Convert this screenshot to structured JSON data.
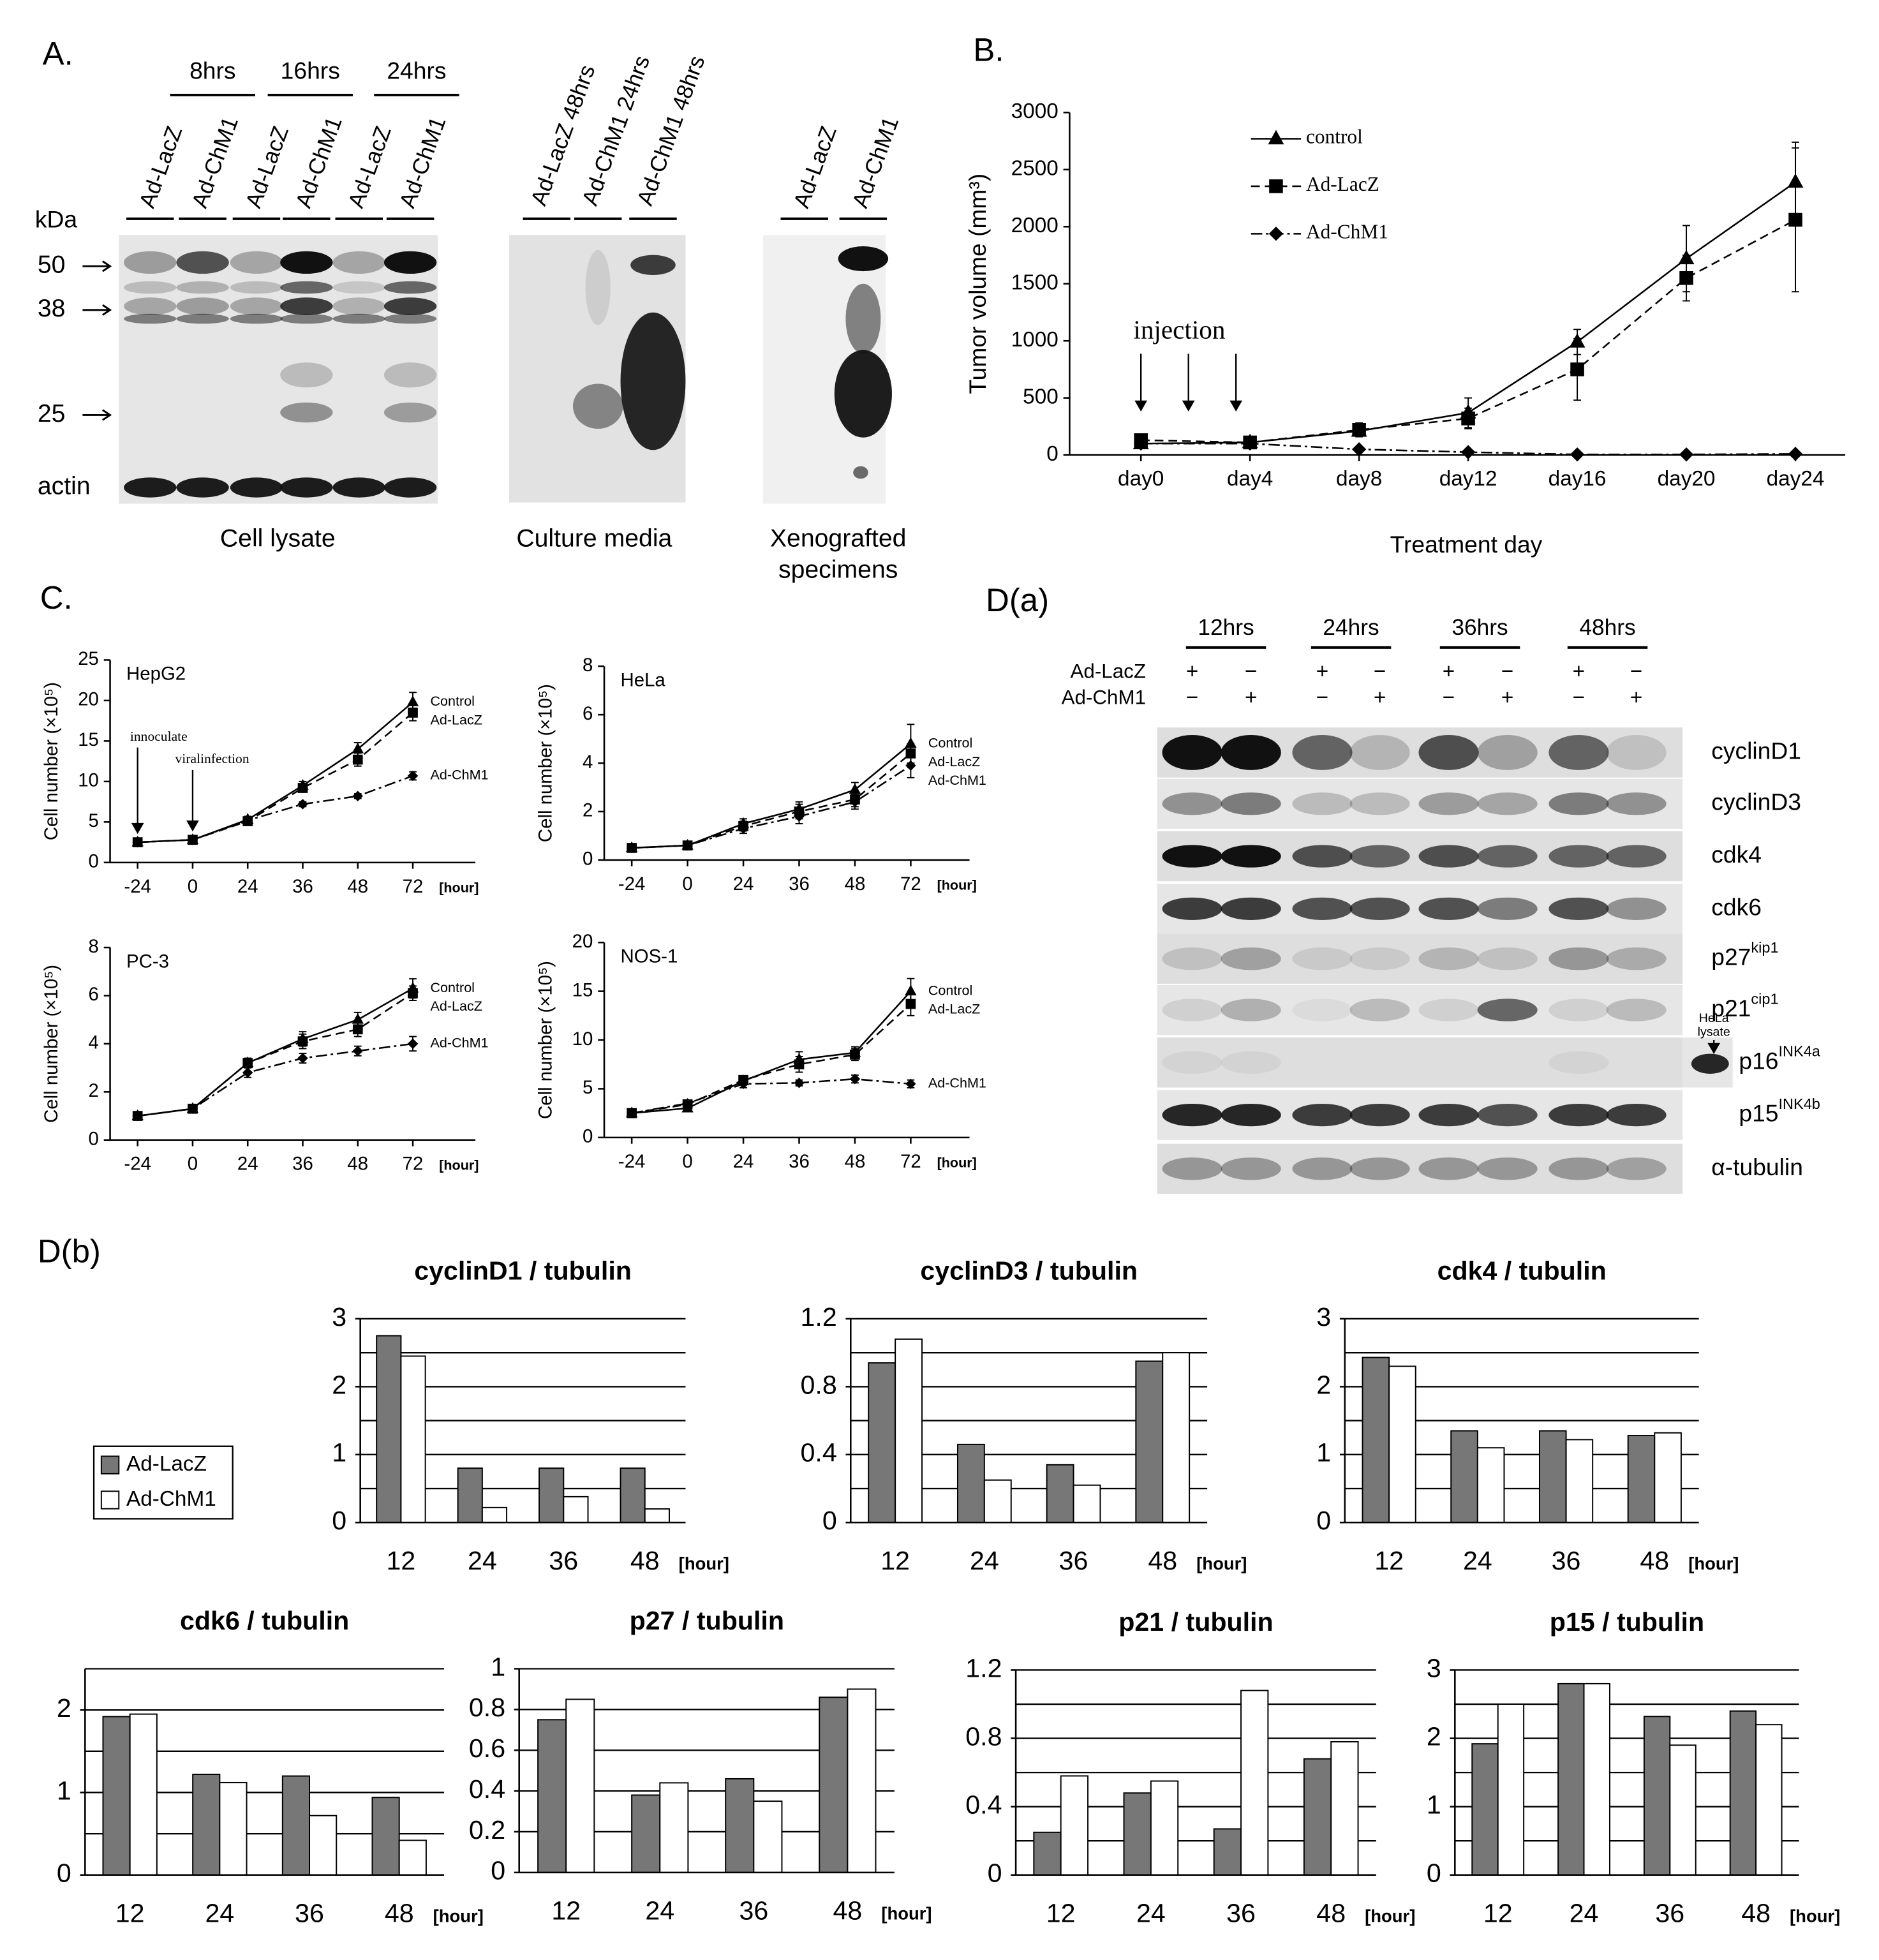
{
  "panels": {
    "a": "A.",
    "b": "B.",
    "c": "C.",
    "da": "D(a)",
    "db": "D(b)"
  },
  "blot_a": {
    "times": [
      "8hrs",
      "16hrs",
      "24hrs"
    ],
    "lanes": [
      "Ad-LacZ",
      "Ad-ChM1",
      "Ad-LacZ",
      "Ad-ChM1",
      "Ad-LacZ",
      "Ad-ChM1"
    ],
    "unit": "kDa",
    "markers": [
      "50",
      "38",
      "25"
    ],
    "loading": "actin",
    "caption": "Cell lysate",
    "media_lanes": [
      "Ad-LacZ 48hrs",
      "Ad-ChM1 24hrs",
      "Ad-ChM1 48hrs"
    ],
    "media_caption": "Culture media",
    "xeno_lanes": [
      "Ad-LacZ",
      "Ad-ChM1"
    ],
    "xeno_caption": [
      "Xenografted",
      "specimens"
    ]
  },
  "blot_d": {
    "times": [
      "12hrs",
      "24hrs",
      "36hrs",
      "48hrs"
    ],
    "rows": [
      "Ad-LacZ",
      "Ad-ChM1"
    ],
    "signs": [
      [
        "+",
        "−",
        "+",
        "−",
        "+",
        "−",
        "+",
        "−"
      ],
      [
        "−",
        "+",
        "−",
        "+",
        "−",
        "+",
        "−",
        "+"
      ]
    ],
    "proteins": [
      {
        "name": "cyclinD1"
      },
      {
        "name": "cyclinD3"
      },
      {
        "name": "cdk4"
      },
      {
        "name": "cdk6"
      },
      {
        "name": "p27",
        "sup": "kip1"
      },
      {
        "name": "p21",
        "sup": "cip1"
      },
      {
        "name": "p16",
        "sup": "INK4a"
      },
      {
        "name": "p15",
        "sup": "INK4b"
      },
      {
        "name": "α-tubulin"
      }
    ],
    "hela": [
      "HeLa",
      "lysate"
    ]
  },
  "chart_data": [
    {
      "type": "line",
      "ylabel": "Tumor volume (mm³)",
      "xlabel": "Treatment day",
      "categories": [
        "day0",
        "day4",
        "day8",
        "day12",
        "day16",
        "day20",
        "day24"
      ],
      "ylim": [
        0,
        3000
      ],
      "yticks": [
        0,
        500,
        1000,
        1500,
        2000,
        2500,
        3000
      ],
      "legend": "upper left",
      "annotations": [
        "injection"
      ],
      "series": [
        {
          "name": "control",
          "color": "#000000",
          "marker": "triangle",
          "dash": "solid",
          "values": [
            100,
            110,
            210,
            370,
            990,
            1720,
            2390
          ],
          "errors": [
            30,
            40,
            50,
            130,
            110,
            290,
            350
          ]
        },
        {
          "name": "Ad-LacZ",
          "color": "#000000",
          "marker": "square",
          "dash": "dashed",
          "values": [
            130,
            110,
            220,
            320,
            750,
            1550,
            2060
          ],
          "errors": [
            40,
            30,
            60,
            90,
            270,
            200,
            630
          ]
        },
        {
          "name": "Ad-ChM1",
          "color": "#000000",
          "marker": "diamond",
          "dash": "dashdot",
          "values": [
            100,
            100,
            50,
            25,
            5,
            5,
            10
          ]
        }
      ]
    },
    {
      "type": "line",
      "title": "HepG2",
      "ylabel": "Cell number (×10⁵)",
      "categories": [
        "-24",
        "0",
        "24",
        "36",
        "48",
        "72"
      ],
      "x_unit": "[hour]",
      "ylim": [
        0,
        25
      ],
      "yticks": [
        0,
        5,
        10,
        15,
        20,
        25
      ],
      "legend": "line end",
      "annotations": [
        "innoculate",
        "viralinfection"
      ],
      "series": [
        {
          "name": "Control",
          "color": "#000000",
          "marker": "triangle",
          "dash": "solid",
          "values": [
            2.5,
            2.8,
            5.3,
            9.5,
            14,
            19.8
          ],
          "errors": [
            0.3,
            0.3,
            0.4,
            0.5,
            0.8,
            1.2
          ]
        },
        {
          "name": "Ad-LacZ",
          "color": "#000000",
          "marker": "square",
          "dash": "dashed",
          "values": [
            2.5,
            2.8,
            5.1,
            9.2,
            12.7,
            18.5
          ],
          "errors": [
            0.3,
            0.3,
            0.4,
            0.5,
            0.8,
            1.0
          ]
        },
        {
          "name": "Ad-ChM1",
          "color": "#000000",
          "marker": "diamond",
          "dash": "dashdot",
          "values": [
            2.5,
            2.8,
            5.2,
            7.2,
            8.2,
            10.7
          ],
          "errors": [
            0.3,
            0.3,
            0.3,
            0.3,
            0.3,
            0.5
          ]
        }
      ]
    },
    {
      "type": "line",
      "title": "HeLa",
      "ylabel": "Cell number (×10⁵)",
      "categories": [
        "-24",
        "0",
        "24",
        "36",
        "48",
        "72"
      ],
      "x_unit": "[hour]",
      "ylim": [
        0,
        8
      ],
      "yticks": [
        0,
        2,
        4,
        6,
        8
      ],
      "legend": "line end",
      "series": [
        {
          "name": "Control",
          "color": "#000000",
          "marker": "triangle",
          "dash": "solid",
          "values": [
            0.5,
            0.6,
            1.5,
            2.1,
            2.9,
            4.8
          ],
          "errors": [
            0.05,
            0.05,
            0.2,
            0.3,
            0.3,
            0.8
          ]
        },
        {
          "name": "Ad-LacZ",
          "color": "#000000",
          "marker": "square",
          "dash": "dashed",
          "values": [
            0.5,
            0.6,
            1.4,
            2.0,
            2.5,
            4.4
          ],
          "errors": [
            0.05,
            0.05,
            0.2,
            0.3,
            0.3,
            0.4
          ]
        },
        {
          "name": "Ad-ChM1",
          "color": "#000000",
          "marker": "diamond",
          "dash": "dashdot",
          "values": [
            0.5,
            0.6,
            1.3,
            1.8,
            2.4,
            3.9
          ],
          "errors": [
            0.05,
            0.05,
            0.2,
            0.3,
            0.3,
            0.5
          ]
        }
      ]
    },
    {
      "type": "line",
      "title": "PC-3",
      "ylabel": "Cell number (×10⁵)",
      "categories": [
        "-24",
        "0",
        "24",
        "36",
        "48",
        "72"
      ],
      "x_unit": "[hour]",
      "ylim": [
        0,
        8
      ],
      "yticks": [
        0,
        2,
        4,
        6,
        8
      ],
      "legend": "line end",
      "series": [
        {
          "name": "Control",
          "color": "#000000",
          "marker": "triangle",
          "dash": "solid",
          "values": [
            1,
            1.3,
            3.2,
            4.2,
            5,
            6.3
          ],
          "errors": [
            0.05,
            0.05,
            0.2,
            0.3,
            0.3,
            0.4
          ]
        },
        {
          "name": "Ad-LacZ",
          "color": "#000000",
          "marker": "square",
          "dash": "dashed",
          "values": [
            1,
            1.3,
            3.2,
            4.1,
            4.6,
            6.1
          ],
          "errors": [
            0.05,
            0.05,
            0.2,
            0.3,
            0.3,
            0.3
          ]
        },
        {
          "name": "Ad-ChM1",
          "color": "#000000",
          "marker": "diamond",
          "dash": "dashdot",
          "values": [
            1,
            1.3,
            2.8,
            3.4,
            3.7,
            4
          ],
          "errors": [
            0.05,
            0.05,
            0.2,
            0.2,
            0.2,
            0.3
          ]
        }
      ]
    },
    {
      "type": "line",
      "title": "NOS-1",
      "ylabel": "Cell number (×10⁵)",
      "categories": [
        "-24",
        "0",
        "24",
        "36",
        "48",
        "72"
      ],
      "x_unit": "[hour]",
      "ylim": [
        0,
        20
      ],
      "yticks": [
        0,
        5,
        10,
        15,
        20
      ],
      "legend": "line end",
      "series": [
        {
          "name": "Control",
          "color": "#000000",
          "marker": "triangle",
          "dash": "solid",
          "values": [
            2.5,
            3,
            5.8,
            8,
            8.7,
            15
          ],
          "errors": [
            0.3,
            0.3,
            0.4,
            0.8,
            0.6,
            1.3
          ]
        },
        {
          "name": "Ad-LacZ",
          "color": "#000000",
          "marker": "square",
          "dash": "dashed",
          "values": [
            2.5,
            3.4,
            5.9,
            7.5,
            8.5,
            13.7
          ],
          "errors": [
            0.3,
            0.3,
            0.4,
            0.8,
            0.6,
            1.2
          ]
        },
        {
          "name": "Ad-ChM1",
          "color": "#000000",
          "marker": "diamond",
          "dash": "dashdot",
          "values": [
            2.5,
            3.5,
            5.5,
            5.6,
            6,
            5.5
          ],
          "errors": [
            0.3,
            0.3,
            0.4,
            0.3,
            0.4,
            0.4
          ]
        }
      ]
    },
    {
      "type": "bar",
      "title": "cyclinD1 / tubulin",
      "categories": [
        "12",
        "24",
        "36",
        "48"
      ],
      "x_unit": "[hour]",
      "ylim": [
        0,
        3
      ],
      "yticks": [
        0,
        1,
        2,
        3
      ],
      "grid": [
        0.5,
        1,
        1.5,
        2,
        2.5,
        3
      ],
      "legend": "left",
      "series": [
        {
          "name": "Ad-LacZ",
          "color": "#777777",
          "values": [
            2.75,
            0.8,
            0.8,
            0.8
          ]
        },
        {
          "name": "Ad-ChM1",
          "color": "#ffffff",
          "values": [
            2.45,
            0.22,
            0.38,
            0.2
          ]
        }
      ]
    },
    {
      "type": "bar",
      "title": "cyclinD3 / tubulin",
      "categories": [
        "12",
        "24",
        "36",
        "48"
      ],
      "x_unit": "[hour]",
      "ylim": [
        0,
        1.2
      ],
      "yticks": [
        0,
        0.4,
        0.8,
        1.2
      ],
      "grid": [
        0.2,
        0.4,
        0.6,
        0.8,
        1,
        1.2
      ],
      "series": [
        {
          "color": "#777777",
          "values": [
            0.94,
            0.46,
            0.34,
            0.95
          ]
        },
        {
          "color": "#ffffff",
          "values": [
            1.08,
            0.25,
            0.22,
            1.0
          ]
        }
      ]
    },
    {
      "type": "bar",
      "title": "cdk4 / tubulin",
      "categories": [
        "12",
        "24",
        "36",
        "48"
      ],
      "x_unit": "[hour]",
      "ylim": [
        0,
        3
      ],
      "yticks": [
        0,
        1,
        2,
        3
      ],
      "grid": [
        0.5,
        1,
        1.5,
        2,
        2.5,
        3
      ],
      "series": [
        {
          "color": "#777777",
          "values": [
            2.43,
            1.35,
            1.35,
            1.28
          ]
        },
        {
          "color": "#ffffff",
          "values": [
            2.3,
            1.1,
            1.22,
            1.32
          ]
        }
      ]
    },
    {
      "type": "bar",
      "title": "cdk6 / tubulin",
      "categories": [
        "12",
        "24",
        "36",
        "48"
      ],
      "x_unit": "[hour]",
      "ylim": [
        0,
        2.5
      ],
      "yticks": [
        0,
        1,
        2
      ],
      "grid": [
        0.5,
        1,
        1.5,
        2,
        2.5
      ],
      "series": [
        {
          "color": "#777777",
          "values": [
            1.92,
            1.22,
            1.2,
            0.94
          ]
        },
        {
          "color": "#ffffff",
          "values": [
            1.95,
            1.12,
            0.72,
            0.42
          ]
        }
      ]
    },
    {
      "type": "bar",
      "title": "p27 / tubulin",
      "categories": [
        "12",
        "24",
        "36",
        "48"
      ],
      "x_unit": "[hour]",
      "ylim": [
        0,
        1
      ],
      "yticks": [
        0,
        0.2,
        0.4,
        0.6,
        0.8,
        1
      ],
      "grid": [
        0.2,
        0.4,
        0.6,
        0.8,
        1
      ],
      "series": [
        {
          "color": "#777777",
          "values": [
            0.75,
            0.38,
            0.46,
            0.86
          ]
        },
        {
          "color": "#ffffff",
          "values": [
            0.85,
            0.44,
            0.35,
            0.9
          ]
        }
      ]
    },
    {
      "type": "bar",
      "title": "p21 / tubulin",
      "categories": [
        "12",
        "24",
        "36",
        "48"
      ],
      "x_unit": "[hour]",
      "ylim": [
        0,
        1.2
      ],
      "yticks": [
        0,
        0.4,
        0.8,
        1.2
      ],
      "grid": [
        0.2,
        0.4,
        0.6,
        0.8,
        1,
        1.2
      ],
      "series": [
        {
          "color": "#777777",
          "values": [
            0.25,
            0.48,
            0.27,
            0.68
          ]
        },
        {
          "color": "#ffffff",
          "values": [
            0.58,
            0.55,
            1.08,
            0.78
          ]
        }
      ]
    },
    {
      "type": "bar",
      "title": "p15 / tubulin",
      "categories": [
        "12",
        "24",
        "36",
        "48"
      ],
      "x_unit": "[hour]",
      "ylim": [
        0,
        3
      ],
      "yticks": [
        0,
        1,
        2,
        3
      ],
      "grid": [
        0.5,
        1,
        1.5,
        2,
        2.5,
        3
      ],
      "series": [
        {
          "color": "#777777",
          "values": [
            1.92,
            2.8,
            2.32,
            2.4
          ]
        },
        {
          "color": "#ffffff",
          "values": [
            2.5,
            2.8,
            1.9,
            2.2
          ]
        }
      ]
    }
  ]
}
